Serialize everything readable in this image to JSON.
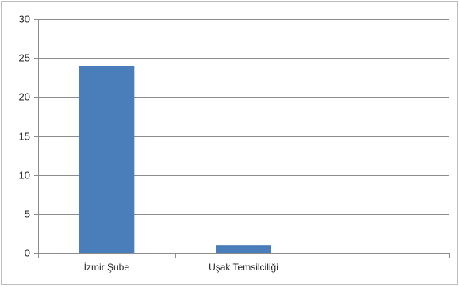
{
  "chart_data": {
    "type": "bar",
    "categories": [
      "İzmir Şube",
      "Uşak Temsilciliği",
      ""
    ],
    "values": [
      24,
      1,
      null
    ],
    "ylim": [
      0,
      30
    ],
    "yticks": [
      0,
      5,
      10,
      15,
      20,
      25,
      30
    ],
    "grid": true,
    "bar_color": "#4a7ebb",
    "title": "",
    "xlabel": "",
    "ylabel": ""
  }
}
